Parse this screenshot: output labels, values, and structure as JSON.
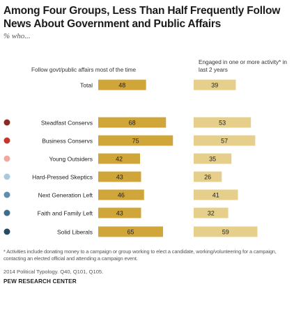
{
  "title": "Among Four Groups, Less Than Half Frequently Follow News About Government and Public Affairs",
  "subtitle": "% who...",
  "colors": {
    "follow_bar": "#d0a63a",
    "engaged_bar": "#e6cf8a"
  },
  "chart_data": {
    "type": "bar",
    "categories": [
      "Total",
      "Steadfast Conservs",
      "Business Conservs",
      "Young Outsiders",
      "Hard-Pressed Skeptics",
      "Next Generation Left",
      "Faith and Family Left",
      "Solid Liberals"
    ],
    "category_dot_colors": [
      null,
      "#8b2a22",
      "#c0392b",
      "#f0a8a0",
      "#a9c8de",
      "#5f8db0",
      "#3f6d90",
      "#274a63"
    ],
    "series": [
      {
        "name": "Follow govt/public affairs most of the time",
        "values": [
          48,
          68,
          75,
          42,
          43,
          46,
          43,
          65
        ]
      },
      {
        "name": "Engaged in one or more activity* in last 2 years",
        "values": [
          39,
          53,
          57,
          35,
          26,
          41,
          32,
          59
        ]
      }
    ]
  },
  "note": "* Activities include donating money to a campaign or group working to elect a candidate, working/volunteering for a campaign, contacting an elected official and attending a campaign event.",
  "source": "2014 Political Typology. Q40, Q101, Q105.",
  "org": "PEW RESEARCH CENTER"
}
